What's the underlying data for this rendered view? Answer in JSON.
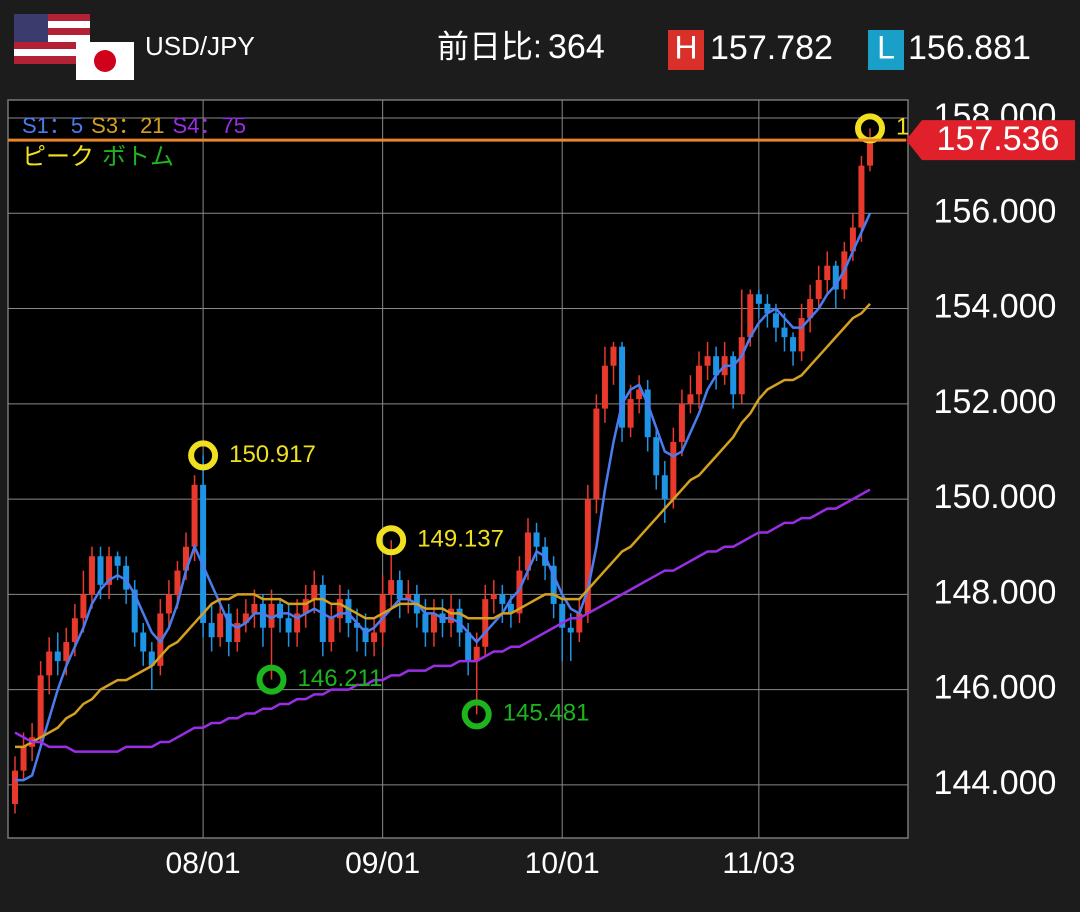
{
  "header": {
    "pair": "USD/JPY",
    "change_label": "前日比:",
    "change": 364,
    "high_label": "H",
    "low_label": "L"
  },
  "chart_data": {
    "type": "candlestick",
    "categories": [
      null,
      null,
      null,
      null,
      null,
      null,
      null,
      null,
      null,
      null,
      null,
      null,
      null,
      null,
      null,
      null,
      null,
      null,
      null,
      null,
      null,
      null,
      "08/01",
      null,
      null,
      null,
      null,
      null,
      null,
      null,
      null,
      null,
      null,
      null,
      null,
      null,
      null,
      null,
      null,
      null,
      null,
      null,
      null,
      "09/01",
      null,
      null,
      null,
      null,
      null,
      null,
      null,
      null,
      null,
      null,
      null,
      null,
      null,
      null,
      null,
      null,
      null,
      null,
      null,
      null,
      "10/01",
      null,
      null,
      null,
      null,
      null,
      null,
      null,
      null,
      null,
      null,
      null,
      null,
      null,
      null,
      null,
      null,
      null,
      null,
      null,
      null,
      null,
      null,
      "11/03",
      null,
      null,
      null,
      null,
      null,
      null,
      null,
      null,
      null,
      null,
      null,
      null,
      null
    ],
    "open": [
      143.6,
      144.3,
      144.8,
      145.0,
      146.3,
      146.8,
      146.6,
      147.0,
      147.5,
      148.0,
      148.8,
      148.2,
      148.8,
      148.6,
      148.1,
      147.2,
      146.8,
      146.5,
      147.6,
      148.0,
      148.5,
      149.0,
      150.3,
      147.4,
      147.1,
      147.6,
      147.0,
      147.4,
      147.6,
      147.8,
      147.3,
      147.8,
      147.5,
      147.2,
      147.6,
      147.9,
      148.2,
      147.0,
      147.5,
      147.9,
      147.4,
      147.3,
      147.0,
      147.2,
      148.0,
      148.3,
      147.9,
      148.0,
      147.6,
      147.2,
      147.6,
      147.4,
      147.7,
      147.2,
      146.6,
      146.9,
      147.9,
      148.0,
      147.8,
      147.6,
      148.5,
      149.3,
      149.0,
      148.6,
      147.8,
      147.3,
      147.2,
      147.6,
      150.0,
      151.9,
      152.8,
      153.2,
      151.5,
      152.1,
      152.3,
      151.3,
      150.5,
      150.0,
      151.2,
      152.0,
      152.2,
      152.8,
      153.0,
      152.6,
      153.0,
      152.2,
      153.4,
      154.3,
      154.1,
      153.9,
      153.6,
      153.4,
      153.1,
      153.8,
      154.2,
      154.6,
      154.9,
      154.4,
      155.2,
      155.7,
      157.0
    ],
    "high": [
      144.6,
      145.1,
      145.3,
      146.6,
      147.1,
      147.2,
      147.3,
      147.8,
      148.5,
      149.0,
      149.0,
      149.0,
      148.9,
      148.8,
      148.3,
      147.4,
      147.0,
      147.9,
      148.3,
      148.7,
      149.3,
      150.5,
      150.917,
      147.8,
      147.9,
      147.8,
      147.7,
      147.9,
      148.1,
      148.0,
      148.1,
      147.9,
      147.8,
      147.9,
      148.2,
      148.5,
      148.4,
      147.8,
      148.2,
      148.1,
      147.7,
      147.6,
      147.5,
      148.4,
      149.137,
      148.5,
      148.3,
      148.2,
      147.9,
      147.9,
      147.9,
      148.0,
      147.9,
      147.4,
      147.2,
      148.2,
      148.3,
      148.2,
      148.0,
      148.8,
      149.6,
      149.5,
      149.2,
      148.8,
      148.0,
      147.6,
      147.9,
      150.3,
      152.2,
      153.2,
      153.3,
      153.3,
      152.4,
      152.6,
      152.5,
      151.5,
      150.8,
      151.5,
      152.3,
      152.6,
      153.1,
      153.3,
      153.2,
      153.3,
      153.1,
      154.4,
      154.4,
      154.4,
      154.3,
      154.1,
      153.9,
      153.5,
      154.1,
      154.5,
      154.9,
      155.2,
      155.0,
      155.4,
      156.0,
      157.2,
      157.782
    ],
    "low": [
      143.4,
      144.1,
      144.5,
      144.8,
      145.9,
      146.3,
      146.3,
      146.7,
      147.2,
      147.7,
      147.9,
      147.9,
      148.3,
      147.8,
      146.9,
      146.5,
      146.0,
      146.3,
      147.3,
      147.7,
      148.3,
      148.7,
      147.1,
      146.8,
      146.9,
      146.7,
      146.8,
      147.2,
      147.3,
      146.9,
      146.211,
      147.2,
      146.9,
      146.9,
      147.3,
      147.6,
      146.7,
      146.8,
      147.2,
      147.1,
      146.8,
      146.7,
      146.7,
      146.9,
      147.7,
      147.5,
      147.6,
      147.3,
      146.9,
      146.9,
      147.1,
      147.1,
      146.9,
      146.3,
      145.481,
      146.7,
      147.6,
      147.4,
      147.3,
      147.4,
      148.3,
      148.7,
      148.3,
      147.5,
      146.6,
      146.6,
      147.0,
      147.4,
      149.7,
      151.6,
      152.4,
      151.2,
      151.3,
      151.8,
      151.0,
      150.2,
      149.5,
      149.8,
      150.9,
      151.8,
      151.9,
      152.5,
      152.3,
      152.4,
      151.9,
      152.0,
      153.2,
      153.8,
      153.6,
      153.3,
      153.1,
      152.8,
      152.9,
      153.5,
      154.0,
      154.3,
      154.0,
      154.2,
      155.0,
      155.4,
      156.881
    ],
    "close": [
      144.3,
      144.8,
      145.0,
      146.3,
      146.8,
      146.6,
      147.0,
      147.5,
      148.0,
      148.8,
      148.2,
      148.8,
      148.6,
      148.1,
      147.2,
      146.8,
      146.5,
      147.6,
      148.0,
      148.5,
      149.0,
      150.3,
      147.4,
      147.1,
      147.6,
      147.0,
      147.4,
      147.6,
      147.8,
      147.3,
      147.8,
      147.5,
      147.2,
      147.6,
      147.9,
      148.2,
      147.0,
      147.5,
      147.9,
      147.4,
      147.3,
      147.0,
      147.2,
      148.0,
      148.3,
      147.9,
      148.0,
      147.6,
      147.2,
      147.6,
      147.4,
      147.7,
      147.2,
      146.6,
      146.9,
      147.9,
      148.0,
      147.8,
      147.6,
      148.5,
      149.3,
      149.0,
      148.6,
      147.8,
      147.3,
      147.2,
      147.6,
      150.0,
      151.9,
      152.8,
      153.2,
      151.5,
      152.1,
      152.3,
      151.3,
      150.5,
      150.0,
      151.2,
      152.0,
      152.2,
      152.8,
      153.0,
      152.6,
      153.0,
      152.2,
      153.4,
      154.3,
      154.1,
      153.9,
      153.6,
      153.4,
      153.1,
      153.8,
      154.2,
      154.6,
      154.9,
      154.4,
      155.2,
      155.7,
      157.0,
      157.536
    ],
    "up_color": "#e8392c",
    "down_color": "#1e94e6",
    "last_color": "#e8842c",
    "series": [
      {
        "name": "S1：5",
        "color": "#4a7cf0",
        "values": [
          144.1,
          144.1,
          144.2,
          144.8,
          145.4,
          146.0,
          146.5,
          146.9,
          147.3,
          147.8,
          148.1,
          148.3,
          148.4,
          148.3,
          148.0,
          147.6,
          147.2,
          147.0,
          147.3,
          147.8,
          148.5,
          149.0,
          148.6,
          148.2,
          147.8,
          147.4,
          147.3,
          147.4,
          147.6,
          147.6,
          147.5,
          147.6,
          147.6,
          147.5,
          147.6,
          147.7,
          147.6,
          147.5,
          147.6,
          147.6,
          147.4,
          147.2,
          147.3,
          147.5,
          147.7,
          147.9,
          147.9,
          147.8,
          147.6,
          147.6,
          147.5,
          147.5,
          147.4,
          147.2,
          147.0,
          147.2,
          147.4,
          147.6,
          147.9,
          148.1,
          148.5,
          148.9,
          148.8,
          148.4,
          148.0,
          147.7,
          147.6,
          148.1,
          149.0,
          150.2,
          151.2,
          152.0,
          152.3,
          152.4,
          152.0,
          151.5,
          151.0,
          150.9,
          151.0,
          151.4,
          151.8,
          152.3,
          152.6,
          152.8,
          152.8,
          153.0,
          153.4,
          153.7,
          153.9,
          154.0,
          153.8,
          153.6,
          153.6,
          153.8,
          154.0,
          154.3,
          154.5,
          154.8,
          155.2,
          155.6,
          156.0
        ]
      },
      {
        "name": "S3：21",
        "color": "#d4a020",
        "values": [
          144.8,
          144.8,
          144.9,
          145.0,
          145.1,
          145.2,
          145.4,
          145.5,
          145.7,
          145.8,
          146.0,
          146.1,
          146.2,
          146.2,
          146.3,
          146.4,
          146.5,
          146.7,
          146.9,
          147.0,
          147.2,
          147.4,
          147.6,
          147.8,
          147.9,
          147.9,
          148.0,
          148.0,
          148.0,
          147.9,
          147.9,
          147.9,
          147.8,
          147.8,
          147.8,
          147.9,
          147.9,
          147.8,
          147.8,
          147.7,
          147.6,
          147.5,
          147.5,
          147.6,
          147.7,
          147.8,
          147.8,
          147.8,
          147.7,
          147.7,
          147.7,
          147.6,
          147.6,
          147.5,
          147.5,
          147.5,
          147.5,
          147.6,
          147.6,
          147.7,
          147.8,
          147.9,
          148.0,
          148.0,
          147.9,
          147.9,
          147.9,
          148.1,
          148.3,
          148.5,
          148.7,
          148.9,
          149.0,
          149.2,
          149.4,
          149.6,
          149.8,
          150.0,
          150.2,
          150.4,
          150.5,
          150.7,
          150.9,
          151.1,
          151.3,
          151.6,
          151.8,
          152.1,
          152.3,
          152.4,
          152.5,
          152.5,
          152.6,
          152.8,
          153.0,
          153.2,
          153.4,
          153.6,
          153.8,
          153.9,
          154.1
        ]
      },
      {
        "name": "S4：75",
        "color": "#9a2ee6",
        "values": [
          145.1,
          145.0,
          144.9,
          144.9,
          144.8,
          144.8,
          144.8,
          144.7,
          144.7,
          144.7,
          144.7,
          144.7,
          144.7,
          144.8,
          144.8,
          144.8,
          144.8,
          144.9,
          144.9,
          145.0,
          145.1,
          145.2,
          145.2,
          145.3,
          145.3,
          145.4,
          145.4,
          145.5,
          145.5,
          145.6,
          145.6,
          145.7,
          145.7,
          145.8,
          145.8,
          145.9,
          145.9,
          146.0,
          146.0,
          146.0,
          146.1,
          146.1,
          146.2,
          146.2,
          146.3,
          146.3,
          146.4,
          146.4,
          146.4,
          146.5,
          146.5,
          146.5,
          146.6,
          146.6,
          146.6,
          146.7,
          146.8,
          146.8,
          146.9,
          146.9,
          147.0,
          147.1,
          147.2,
          147.3,
          147.4,
          147.5,
          147.5,
          147.6,
          147.7,
          147.8,
          147.9,
          148.0,
          148.1,
          148.2,
          148.3,
          148.4,
          148.5,
          148.5,
          148.6,
          148.7,
          148.8,
          148.9,
          148.9,
          149.0,
          149.0,
          149.1,
          149.2,
          149.3,
          149.3,
          149.4,
          149.5,
          149.5,
          149.6,
          149.6,
          149.7,
          149.8,
          149.8,
          149.9,
          150.0,
          150.1,
          150.2
        ]
      }
    ],
    "markers": [
      {
        "name": "ピーク",
        "color": "#f0e020",
        "values": [
          150.917,
          149.137,
          157.782
        ]
      },
      {
        "name": "ボトム",
        "color": "#1eb41e",
        "values": [
          146.211,
          145.481
        ]
      }
    ],
    "ylim": [
      142.886,
      158.378
    ],
    "yticks": [
      {
        "value": 144,
        "label": "144.000"
      },
      {
        "value": 146,
        "label": "146.000"
      },
      {
        "value": 148,
        "label": "148.000"
      },
      {
        "value": 150,
        "label": "150.000"
      },
      {
        "value": 152,
        "label": "152.000"
      },
      {
        "value": 154,
        "label": "154.000"
      },
      {
        "value": 156,
        "label": "156.000"
      },
      {
        "value": 158,
        "label": "158.000"
      }
    ],
    "grid": true
  }
}
